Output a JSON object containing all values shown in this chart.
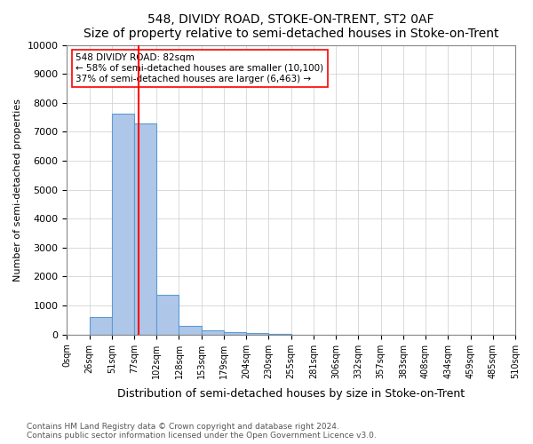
{
  "title": "548, DIVIDY ROAD, STOKE-ON-TRENT, ST2 0AF",
  "subtitle": "Size of property relative to semi-detached houses in Stoke-on-Trent",
  "xlabel": "Distribution of semi-detached houses by size in Stoke-on-Trent",
  "ylabel": "Number of semi-detached properties",
  "footnote1": "Contains HM Land Registry data © Crown copyright and database right 2024.",
  "footnote2": "Contains public sector information licensed under the Open Government Licence v3.0.",
  "bin_labels": [
    "0sqm",
    "26sqm",
    "51sqm",
    "77sqm",
    "102sqm",
    "128sqm",
    "153sqm",
    "179sqm",
    "204sqm",
    "230sqm",
    "255sqm",
    "281sqm",
    "306sqm",
    "332sqm",
    "357sqm",
    "383sqm",
    "408sqm",
    "434sqm",
    "459sqm",
    "485sqm",
    "510sqm"
  ],
  "bar_heights": [
    0,
    600,
    7620,
    7280,
    1360,
    310,
    130,
    80,
    60,
    10,
    0,
    0,
    0,
    0,
    0,
    0,
    0,
    0,
    0,
    0
  ],
  "bar_color": "#aec6e8",
  "bar_edge_color": "#5b9bd5",
  "red_line_x": 82,
  "red_line_label": "548 DIVIDY ROAD: 82sqm",
  "annotation_line1": "← 58% of semi-detached houses are smaller (10,100)",
  "annotation_line2": "37% of semi-detached houses are larger (6,463) →",
  "ylim": [
    0,
    10000
  ],
  "yticks": [
    0,
    1000,
    2000,
    3000,
    4000,
    5000,
    6000,
    7000,
    8000,
    9000,
    10000
  ],
  "bin_width": 25.5
}
